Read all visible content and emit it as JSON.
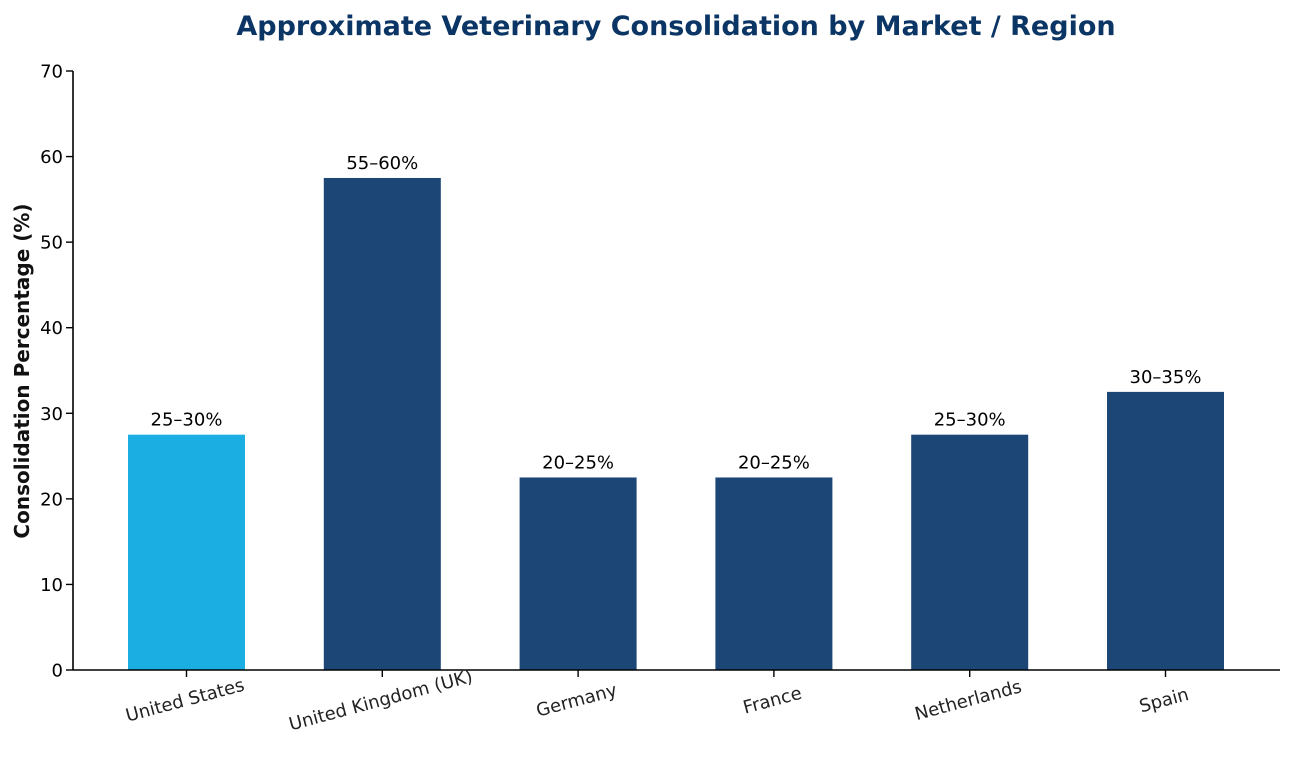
{
  "chart_data": {
    "type": "bar",
    "title": "Approximate Veterinary Consolidation by Market / Region",
    "xlabel": "",
    "ylabel": "Consolidation Percentage (%)",
    "ylim": [
      0,
      70
    ],
    "yticks": [
      0,
      10,
      20,
      30,
      40,
      50,
      60,
      70
    ],
    "categories": [
      "United States",
      "United Kingdom (UK)",
      "Germany",
      "France",
      "Netherlands",
      "Spain"
    ],
    "values": [
      27.5,
      57.5,
      22.5,
      22.5,
      27.5,
      32.5
    ],
    "data_labels": [
      "25–30%",
      "55–60%",
      "20–25%",
      "20–25%",
      "25–30%",
      "30–35%"
    ],
    "highlight_index": 0,
    "grid": false,
    "legend": "none"
  },
  "colors": {
    "title": "#0b3564",
    "bar": "#1b4675",
    "highlight": "#1aaee2",
    "axis": "#000000"
  }
}
